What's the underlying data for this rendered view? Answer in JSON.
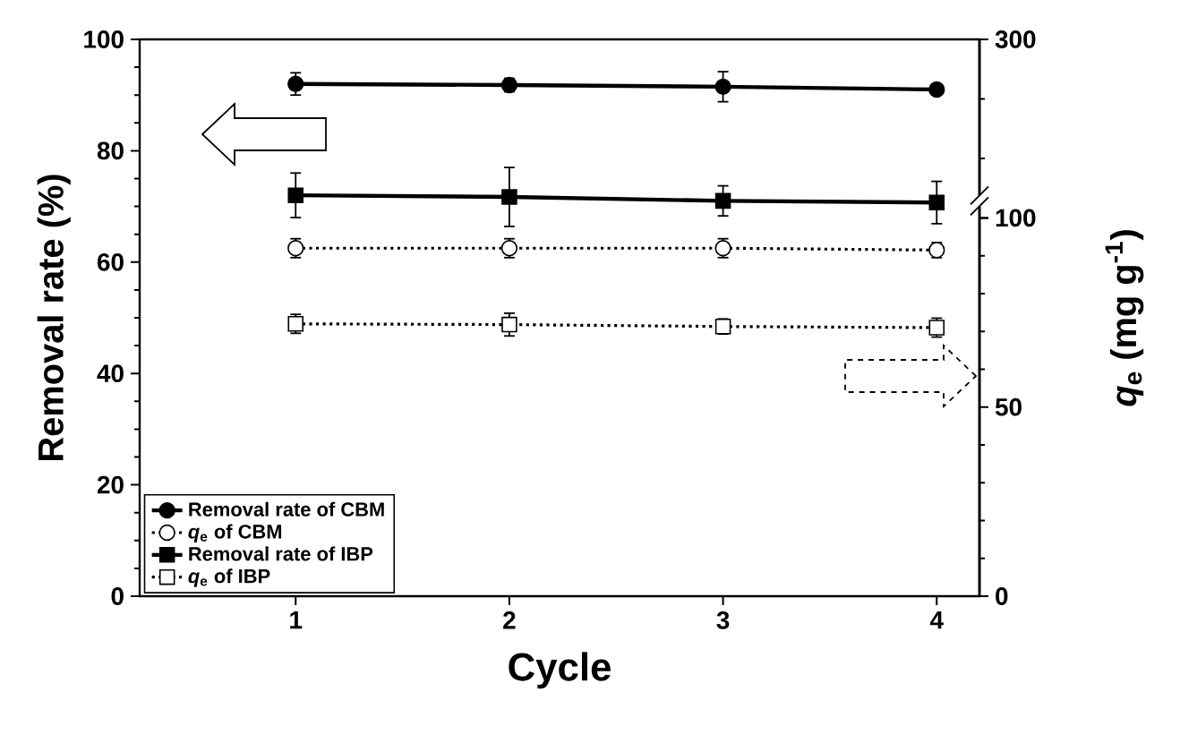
{
  "chart_data": {
    "type": "line",
    "xlabel": "Cycle",
    "ylabel": "Removal rate (%)",
    "y2label": "*q*$_{e}$ (mg g$^{-1}$)",
    "x": [
      1,
      2,
      3,
      4
    ],
    "xlim": [
      0.27,
      4.2
    ],
    "xticks": [
      1,
      2,
      3,
      4
    ],
    "ylim": [
      0,
      100
    ],
    "yticks": [
      0,
      20,
      40,
      60,
      80,
      100
    ],
    "y2lim": [
      0,
      147.2
    ],
    "y2ticks": [
      0,
      50,
      {
        "value": 100,
        "label": null
      }
    ],
    "y3lim": [
      -323.9,
      300
    ],
    "y3ticks": [
      100,
      300
    ],
    "legend": "bottom left",
    "grid": false,
    "series": [
      {
        "name": "Removal rate of CBM",
        "color": "#000000",
        "marker": "circle",
        "line_style": "solid",
        "values": [
          92,
          91.8,
          91.5,
          91
        ],
        "errors": [
          2,
          1.2,
          2.7,
          null
        ]
      },
      {
        "name": "*q*$_{e}$ of CBM",
        "color": "#000000",
        "axis": "y2",
        "marker": "circle",
        "line_style": "dotted",
        "values": [
          92,
          92,
          92,
          91.5
        ],
        "errors": [
          2.5,
          2.5,
          2.5,
          2
        ]
      },
      {
        "name": "Removal rate of IBP",
        "color": "#000000",
        "marker": "square",
        "line_style": "solid",
        "values": [
          72,
          71.7,
          71,
          70.7
        ],
        "errors": [
          4,
          5.3,
          2.7,
          3.8
        ]
      },
      {
        "name": "*q*$_{e}$ of IBP",
        "color": "#000000",
        "axis": "y2",
        "marker": "square",
        "line_style": "dotted",
        "values": [
          72,
          71.8,
          71.3,
          71
        ],
        "errors": [
          2.5,
          3,
          2,
          2.5
        ]
      }
    ]
  }
}
